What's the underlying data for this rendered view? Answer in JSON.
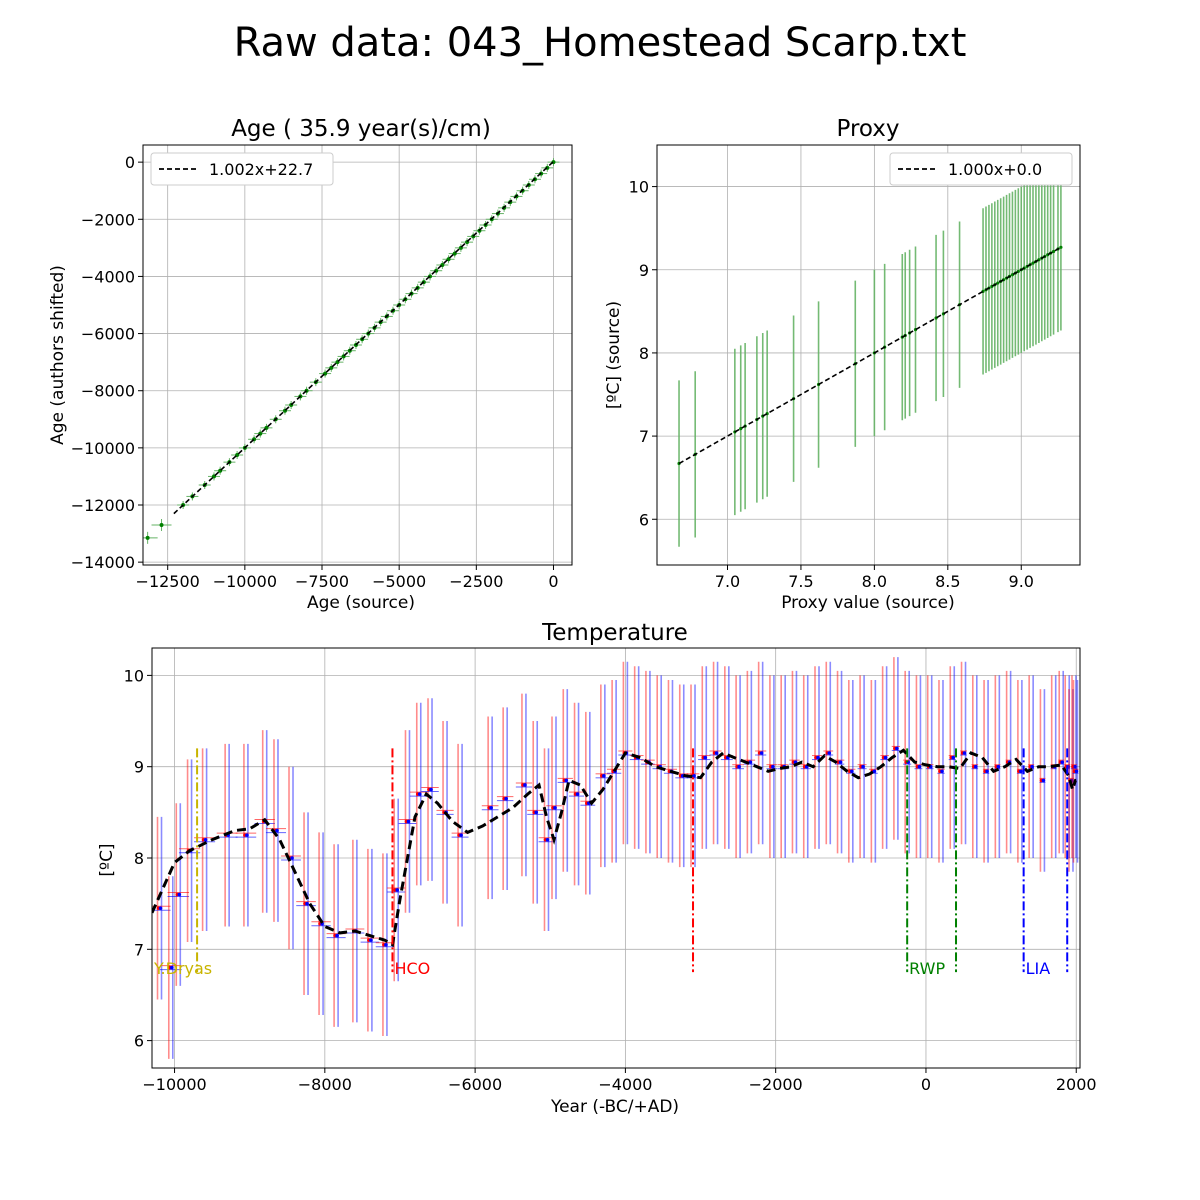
{
  "figure": {
    "title": "Raw data: 043_Homestead Scarp.txt"
  },
  "colors": {
    "green": "#008000",
    "green_err": "#66b366",
    "red": "#ff0000",
    "blue": "#0000ff",
    "trend": "#000000",
    "ydryas": "#c8b400",
    "hco": "#ff0000",
    "rwp": "#008000",
    "lia": "#0000ff"
  },
  "chart_data": [
    {
      "id": "age",
      "type": "scatter",
      "title": "Age ( 35.9 year(s)/cm)",
      "xlabel": "Age (source)",
      "ylabel": "Age (authors shifted)",
      "xlim": [
        -13300,
        600
      ],
      "ylim": [
        -14100,
        600
      ],
      "xticks": [
        -12500,
        -10000,
        -7500,
        -5000,
        -2500,
        0
      ],
      "xtick_labels": [
        "−12500",
        "−10000",
        "−7500",
        "−5000",
        "−2500",
        "0"
      ],
      "yticks": [
        -14000,
        -12000,
        -10000,
        -8000,
        -6000,
        -4000,
        -2000,
        0
      ],
      "ytick_labels": [
        "−14000",
        "−12000",
        "−10000",
        "−8000",
        "−6000",
        "−4000",
        "−2000",
        "0"
      ],
      "grid": true,
      "legend": {
        "placement": "top-left",
        "entries": [
          "1.002x+22.7"
        ]
      },
      "fit": {
        "slope": 1.002,
        "intercept": 22.7,
        "x_range": [
          -12300,
          0
        ]
      },
      "x": [
        -13150,
        -12700,
        -12000,
        -11700,
        -11300,
        -11000,
        -10800,
        -10500,
        -10250,
        -10000,
        -9700,
        -9500,
        -9300,
        -9000,
        -8700,
        -8500,
        -8200,
        -8000,
        -7700,
        -7400,
        -7200,
        -7000,
        -6800,
        -6600,
        -6400,
        -6200,
        -6000,
        -5800,
        -5600,
        -5400,
        -5200,
        -5000,
        -4800,
        -4600,
        -4400,
        -4200,
        -4000,
        -3800,
        -3600,
        -3400,
        -3200,
        -3000,
        -2800,
        -2600,
        -2400,
        -2200,
        -2000,
        -1800,
        -1600,
        -1400,
        -1200,
        -1000,
        -800,
        -600,
        -400,
        -200,
        0
      ],
      "y": [
        -13150,
        -12700,
        -12000,
        -11700,
        -11300,
        -11000,
        -10800,
        -10500,
        -10250,
        -10000,
        -9700,
        -9500,
        -9300,
        -9000,
        -8700,
        -8500,
        -8200,
        -8000,
        -7700,
        -7400,
        -7200,
        -7000,
        -6800,
        -6600,
        -6400,
        -6200,
        -6000,
        -5800,
        -5600,
        -5400,
        -5200,
        -5000,
        -4800,
        -4600,
        -4400,
        -4200,
        -4000,
        -3800,
        -3600,
        -3400,
        -3200,
        -3000,
        -2800,
        -2600,
        -2400,
        -2200,
        -2000,
        -1800,
        -1600,
        -1400,
        -1200,
        -1000,
        -800,
        -600,
        -400,
        -200,
        0
      ]
    },
    {
      "id": "proxy",
      "type": "scatter",
      "title": "Proxy",
      "xlabel": "Proxy value (source)",
      "ylabel": "[ºC] (source)",
      "xlim": [
        6.52,
        9.4
      ],
      "ylim": [
        5.45,
        10.5
      ],
      "xticks": [
        7.0,
        7.5,
        8.0,
        8.5,
        9.0
      ],
      "xtick_labels": [
        "7.0",
        "7.5",
        "8.0",
        "8.5",
        "9.0"
      ],
      "yticks": [
        6,
        7,
        8,
        9,
        10
      ],
      "ytick_labels": [
        "6",
        "7",
        "8",
        "9",
        "10"
      ],
      "grid": true,
      "legend": {
        "placement": "top-right",
        "entries": [
          "1.000x+0.0"
        ]
      },
      "fit": {
        "slope": 1.0,
        "intercept": 0.0,
        "x_range": [
          6.67,
          9.27
        ]
      },
      "x": [
        6.67,
        6.78,
        7.05,
        7.09,
        7.12,
        7.2,
        7.24,
        7.27,
        7.45,
        7.62,
        7.87,
        8.0,
        8.07,
        8.19,
        8.21,
        8.24,
        8.28,
        8.42,
        8.47,
        8.58,
        8.74,
        8.76,
        8.78,
        8.8,
        8.82,
        8.84,
        8.86,
        8.88,
        8.9,
        8.92,
        8.94,
        8.96,
        8.98,
        9.0,
        9.02,
        9.04,
        9.06,
        9.08,
        9.1,
        9.12,
        9.14,
        9.16,
        9.18,
        9.2,
        9.22,
        9.25,
        9.27
      ],
      "err": 1.0
    },
    {
      "id": "temperature",
      "type": "line",
      "title": "Temperature",
      "xlabel": "Year (-BC/+AD)",
      "ylabel": "[ºC]",
      "xlim": [
        -10300,
        2050
      ],
      "ylim": [
        5.7,
        10.3
      ],
      "xticks": [
        -10000,
        -8000,
        -6000,
        -4000,
        -2000,
        0,
        2000
      ],
      "xtick_labels": [
        "−10000",
        "−8000",
        "−6000",
        "−4000",
        "−2000",
        "0",
        "2000"
      ],
      "yticks": [
        6,
        7,
        8,
        9,
        10
      ],
      "ytick_labels": [
        "6",
        "7",
        "8",
        "9",
        "10"
      ],
      "grid": true,
      "err": 1.0,
      "x": [
        -10200,
        -10050,
        -9950,
        -9800,
        -9600,
        -9300,
        -9050,
        -8800,
        -8650,
        -8450,
        -8250,
        -8050,
        -7850,
        -7600,
        -7400,
        -7200,
        -7050,
        -6900,
        -6750,
        -6600,
        -6400,
        -6200,
        -5800,
        -5600,
        -5350,
        -5200,
        -5050,
        -4950,
        -4800,
        -4650,
        -4500,
        -4300,
        -4150,
        -4000,
        -3850,
        -3700,
        -3550,
        -3400,
        -3250,
        -3100,
        -2950,
        -2800,
        -2650,
        -2500,
        -2350,
        -2200,
        -2050,
        -1900,
        -1750,
        -1600,
        -1450,
        -1300,
        -1150,
        -1000,
        -850,
        -700,
        -550,
        -400,
        -250,
        -100,
        50,
        200,
        350,
        500,
        650,
        800,
        950,
        1100,
        1250,
        1400,
        1550,
        1700,
        1800,
        1880,
        1930,
        1970,
        1990
      ],
      "values": [
        7.45,
        6.8,
        7.6,
        8.08,
        8.2,
        8.25,
        8.25,
        8.4,
        8.3,
        8.0,
        7.5,
        7.28,
        7.15,
        7.2,
        7.1,
        7.05,
        7.65,
        8.4,
        8.7,
        8.75,
        8.5,
        8.25,
        8.55,
        8.65,
        8.8,
        8.5,
        8.2,
        8.55,
        8.85,
        8.7,
        8.6,
        8.9,
        8.95,
        9.15,
        9.1,
        9.05,
        9.0,
        8.95,
        8.9,
        8.9,
        9.1,
        9.15,
        9.1,
        9.0,
        9.05,
        9.15,
        9.0,
        9.0,
        9.05,
        9.0,
        9.1,
        9.15,
        9.05,
        8.95,
        9.0,
        8.95,
        9.1,
        9.2,
        9.05,
        9.0,
        9.0,
        8.95,
        9.1,
        9.15,
        9.0,
        8.95,
        9.0,
        9.05,
        8.95,
        9.0,
        8.85,
        9.0,
        9.05,
        9.0,
        8.85,
        9.0,
        8.95
      ],
      "trend_x": [
        -10300,
        -10000,
        -9800,
        -9500,
        -9200,
        -9000,
        -8800,
        -8600,
        -8400,
        -8200,
        -8000,
        -7800,
        -7600,
        -7400,
        -7200,
        -7100,
        -7000,
        -6900,
        -6800,
        -6650,
        -6500,
        -6300,
        -6100,
        -5900,
        -5700,
        -5500,
        -5300,
        -5150,
        -5050,
        -4950,
        -4850,
        -4750,
        -4600,
        -4450,
        -4300,
        -4150,
        -4000,
        -3800,
        -3600,
        -3400,
        -3200,
        -3000,
        -2850,
        -2700,
        -2550,
        -2400,
        -2250,
        -2100,
        -1950,
        -1800,
        -1650,
        -1500,
        -1350,
        -1200,
        -1050,
        -900,
        -750,
        -600,
        -450,
        -300,
        -150,
        0,
        150,
        300,
        450,
        600,
        750,
        900,
        1050,
        1200,
        1350,
        1500,
        1650,
        1800,
        1900,
        1950,
        1990,
        2000
      ],
      "trend_y": [
        7.4,
        7.95,
        8.08,
        8.2,
        8.3,
        8.32,
        8.42,
        8.2,
        7.85,
        7.5,
        7.25,
        7.18,
        7.2,
        7.15,
        7.1,
        7.05,
        7.55,
        8.0,
        8.45,
        8.7,
        8.6,
        8.4,
        8.28,
        8.35,
        8.45,
        8.55,
        8.7,
        8.8,
        8.45,
        8.2,
        8.5,
        8.85,
        8.8,
        8.6,
        8.75,
        8.95,
        9.15,
        9.1,
        9.0,
        8.95,
        8.9,
        8.88,
        9.05,
        9.15,
        9.1,
        9.05,
        9.0,
        8.95,
        8.98,
        9.0,
        9.05,
        9.0,
        9.12,
        9.05,
        8.95,
        8.88,
        8.92,
        9.0,
        9.1,
        9.18,
        9.05,
        9.02,
        9.0,
        9.0,
        8.98,
        9.15,
        9.1,
        8.95,
        9.0,
        9.08,
        8.95,
        9.0,
        9.0,
        9.02,
        8.9,
        8.75,
        8.85,
        8.85
      ],
      "periods": [
        {
          "label": "Y.Dryas",
          "color_key": "ydryas",
          "lines": [
            -9700
          ],
          "label_x": -10300,
          "y_top": 9.2,
          "y_bottom": 6.75
        },
        {
          "label": "HCO",
          "color_key": "hco",
          "lines": [
            -7100,
            -3100
          ],
          "label_x": -7100,
          "y_top": 9.2,
          "y_bottom": 6.75
        },
        {
          "label": "RWP",
          "color_key": "rwp",
          "lines": [
            -250,
            400
          ],
          "label_x": -250,
          "y_top": 9.2,
          "y_bottom": 6.75
        },
        {
          "label": "LIA",
          "color_key": "lia",
          "lines": [
            1300,
            1880
          ],
          "label_x": 1300,
          "y_top": 9.2,
          "y_bottom": 6.75
        }
      ]
    }
  ]
}
